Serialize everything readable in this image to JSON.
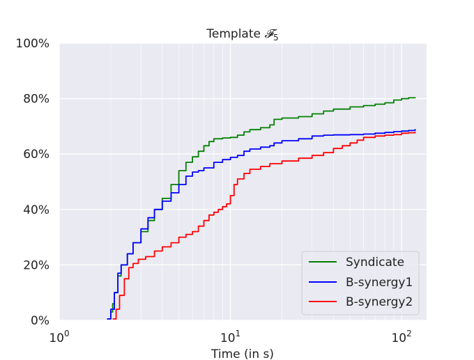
{
  "chart_data": {
    "type": "line",
    "title": "Template ",
    "title_symbol": "𝓕",
    "title_subscript": "5",
    "xlabel": "Time (in s)",
    "ylabel": "",
    "xscale": "log",
    "xlim": [
      1,
      140
    ],
    "ylim": [
      0,
      100
    ],
    "x_ticks": [
      {
        "value": 1,
        "base": "10",
        "exp": "0"
      },
      {
        "value": 10,
        "base": "10",
        "exp": "1"
      },
      {
        "value": 100,
        "base": "10",
        "exp": "2"
      }
    ],
    "y_ticks": [
      {
        "value": 0,
        "label": "0%"
      },
      {
        "value": 20,
        "label": "20%"
      },
      {
        "value": 40,
        "label": "40%"
      },
      {
        "value": 60,
        "label": "60%"
      },
      {
        "value": 80,
        "label": "80%"
      },
      {
        "value": 100,
        "label": "100%"
      }
    ],
    "grid": true,
    "legend_position": "lower-right",
    "background": "#eaeaf2",
    "series": [
      {
        "name": "Syndicate",
        "color": "#008000",
        "x": [
          1.9,
          2.0,
          2.05,
          2.1,
          2.2,
          2.3,
          2.5,
          2.7,
          3.0,
          3.3,
          3.6,
          4.0,
          4.5,
          5.0,
          5.5,
          6.0,
          6.5,
          7.0,
          7.5,
          8.0,
          9.0,
          10.0,
          11.0,
          12.0,
          13.0,
          15.0,
          17.0,
          18.0,
          20.0,
          25.0,
          30.0,
          35.0,
          40.0,
          50.0,
          60.0,
          70.0,
          80.0,
          90.0,
          100.0,
          110.0,
          120.0
        ],
        "y": [
          0.5,
          3,
          6,
          10,
          16,
          20,
          24,
          28,
          32,
          36,
          40,
          44,
          49,
          54,
          57,
          59,
          61,
          63,
          64.5,
          65.5,
          65.8,
          66,
          66.8,
          68,
          68.8,
          69.5,
          70.5,
          72.5,
          73,
          73.5,
          74.5,
          75.5,
          76.2,
          77,
          77.5,
          78,
          78.5,
          79.5,
          80,
          80.3,
          80.5
        ]
      },
      {
        "name": "B-synergy1",
        "color": "#0000ff",
        "x": [
          1.9,
          2.0,
          2.1,
          2.2,
          2.3,
          2.5,
          2.7,
          3.0,
          3.3,
          3.6,
          4.0,
          4.5,
          5.0,
          5.5,
          6.0,
          6.5,
          7.0,
          8.0,
          9.0,
          10.0,
          11.0,
          12.0,
          13.0,
          15.0,
          17.0,
          18.0,
          20.0,
          25.0,
          30.0,
          35.0,
          40.0,
          50.0,
          60.0,
          70.0,
          80.0,
          90.0,
          100.0,
          110.0,
          120.0
        ],
        "y": [
          0.5,
          4,
          10,
          17,
          20,
          24,
          28,
          33,
          37,
          40,
          43,
          46,
          49,
          52,
          53.5,
          54,
          55,
          57,
          58,
          58.8,
          59.5,
          61,
          61.8,
          62.5,
          63,
          64,
          64.8,
          65.5,
          66.5,
          66.8,
          66.9,
          67,
          67.2,
          67.5,
          67.8,
          68.1,
          68.3,
          68.5,
          69
        ]
      },
      {
        "name": "B-synergy2",
        "color": "#ff0000",
        "x": [
          2.05,
          2.15,
          2.25,
          2.4,
          2.55,
          2.7,
          2.9,
          3.2,
          3.6,
          4.0,
          4.5,
          5.0,
          5.5,
          6.0,
          6.5,
          7.0,
          7.5,
          8.0,
          8.5,
          9.0,
          9.5,
          10.0,
          10.5,
          11.0,
          12.0,
          13.0,
          15.0,
          17.0,
          20.0,
          25.0,
          30.0,
          35.0,
          40.0,
          45.0,
          50.0,
          55.0,
          60.0,
          70.0,
          80.0,
          90.0,
          100.0,
          110.0,
          120.0
        ],
        "y": [
          0.5,
          4,
          9,
          15,
          19,
          20.5,
          22,
          23,
          25,
          26.5,
          28,
          30,
          31,
          32,
          34,
          36,
          38,
          39,
          40,
          41,
          42,
          45,
          49,
          51,
          53,
          54.5,
          55.5,
          56.5,
          57.5,
          58.5,
          59.5,
          60.5,
          62,
          63,
          64,
          65,
          66,
          66.5,
          66.8,
          67,
          67.5,
          67.7,
          68
        ]
      }
    ]
  }
}
